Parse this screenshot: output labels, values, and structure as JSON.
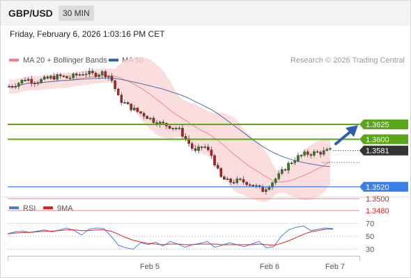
{
  "header": {
    "pair": "GBP/USD",
    "timeframe": "30 MIN"
  },
  "date_line": "Friday, February 6, 2026 1:03:16 PM CET",
  "legend": {
    "ma20": "MA 20 + Bollinger Bands",
    "ma50": "MA 50",
    "ma20_color": "#f08080",
    "ma50_color": "#2c5fa8",
    "credit": "Research © 2026 Trading Central"
  },
  "rsi_legend": {
    "rsi": "RSI",
    "ma9": "9MA",
    "rsi_color": "#4a7fd8",
    "ma9_color": "#e02020"
  },
  "chart_data": [
    {
      "type": "candlestick",
      "title": "",
      "pivot": 1.352,
      "resistances": [
        1.36,
        1.3625
      ],
      "supports": [
        1.35,
        1.348
      ],
      "last_price": 1.3581,
      "level_labels": [
        "1.3625",
        "1.3600",
        "1.3581",
        "1.3520",
        "1.3500",
        "1.3480"
      ],
      "level_colors": {
        "resistance": "#5aa51a",
        "pivot": "#3a7ee6",
        "support": "#f08080",
        "last": "#333333"
      },
      "x_tick_labels": [
        "Feb 5",
        "Feb 6",
        "Feb 7"
      ],
      "close_path": [
        1.3689,
        1.3694,
        1.3702,
        1.3697,
        1.37,
        1.3704,
        1.3706,
        1.3703,
        1.3708,
        1.3712,
        1.3709,
        1.3712,
        1.3705,
        1.3668,
        1.3657,
        1.3648,
        1.3641,
        1.3632,
        1.3626,
        1.3622,
        1.3618,
        1.3599,
        1.3578,
        1.359,
        1.3572,
        1.3536,
        1.3528,
        1.353,
        1.3528,
        1.3522,
        1.3514,
        1.3526,
        1.354,
        1.3557,
        1.3569,
        1.3575,
        1.3577,
        1.3578,
        1.3581
      ],
      "series": [
        {
          "name": "MA 20 + Bollinger Bands"
        },
        {
          "name": "MA 50"
        }
      ]
    },
    {
      "type": "line",
      "title": "",
      "ylim": [
        20,
        80
      ],
      "y_ticks": [
        70,
        50,
        30
      ],
      "rsi_values": [
        54,
        57,
        58,
        56,
        58,
        60,
        57,
        60,
        63,
        59,
        52,
        61,
        63,
        62,
        50,
        36,
        32,
        30,
        40,
        37,
        41,
        35,
        42,
        38,
        33,
        37,
        39,
        42,
        33,
        36,
        40,
        37,
        34,
        38,
        42,
        32,
        34,
        50,
        60,
        64,
        66,
        59,
        61,
        63,
        62
      ],
      "ma9_values": [
        54,
        55,
        56,
        56,
        57,
        58,
        58,
        59,
        60,
        60,
        59,
        59,
        60,
        60,
        58,
        53,
        48,
        44,
        41,
        39,
        38,
        37,
        38,
        38,
        37,
        37,
        38,
        38,
        38,
        37,
        37,
        37,
        37,
        37,
        38,
        37,
        36,
        39,
        43,
        48,
        53,
        57,
        59,
        61,
        61
      ]
    }
  ]
}
